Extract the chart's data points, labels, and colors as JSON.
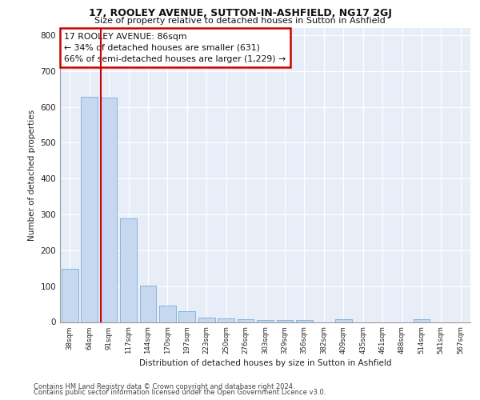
{
  "title1": "17, ROOLEY AVENUE, SUTTON-IN-ASHFIELD, NG17 2GJ",
  "title2": "Size of property relative to detached houses in Sutton in Ashfield",
  "xlabel": "Distribution of detached houses by size in Sutton in Ashfield",
  "ylabel": "Number of detached properties",
  "footer1": "Contains HM Land Registry data © Crown copyright and database right 2024.",
  "footer2": "Contains public sector information licensed under the Open Government Licence v3.0.",
  "categories": [
    "38sqm",
    "64sqm",
    "91sqm",
    "117sqm",
    "144sqm",
    "170sqm",
    "197sqm",
    "223sqm",
    "250sqm",
    "276sqm",
    "303sqm",
    "329sqm",
    "356sqm",
    "382sqm",
    "409sqm",
    "435sqm",
    "461sqm",
    "488sqm",
    "514sqm",
    "541sqm",
    "567sqm"
  ],
  "values": [
    148,
    628,
    626,
    288,
    101,
    46,
    30,
    13,
    11,
    8,
    6,
    5,
    5,
    0,
    8,
    0,
    0,
    0,
    7,
    0,
    0
  ],
  "bar_color": "#c5d8f0",
  "bar_edge_color": "#7aadd4",
  "vline_color": "#cc0000",
  "vline_x_index": 2,
  "annotation_text": "17 ROOLEY AVENUE: 86sqm\n← 34% of detached houses are smaller (631)\n66% of semi-detached houses are larger (1,229) →",
  "annotation_box_color": "#ffffff",
  "annotation_border_color": "#cc0000",
  "ylim": [
    0,
    820
  ],
  "yticks": [
    0,
    100,
    200,
    300,
    400,
    500,
    600,
    700,
    800
  ],
  "fig_bg_color": "#ffffff",
  "plot_bg_color": "#e8eef8"
}
